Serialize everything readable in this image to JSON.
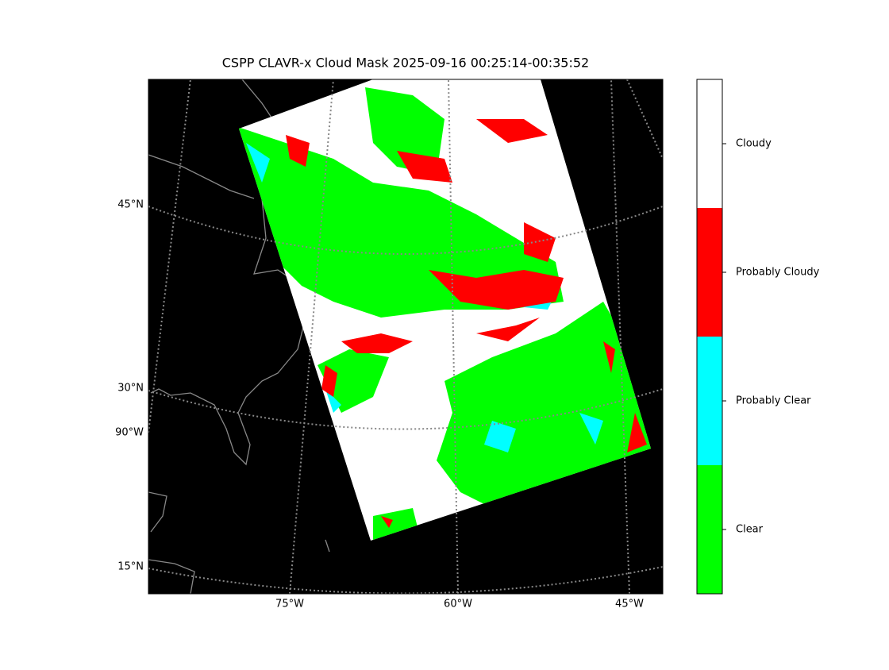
{
  "title": "CSPP CLAVR-x Cloud Mask 2025-09-16 00:25:14-00:35:52",
  "lat_labels": [
    "45°N",
    "30°N",
    "15°N"
  ],
  "lon_labels": [
    "90°W",
    "75°W",
    "60°W",
    "45°W"
  ],
  "colorbar": {
    "labels": [
      "Clear",
      "Probably Clear",
      "Probably Cloudy",
      "Cloudy"
    ],
    "colors": [
      "#00ff00",
      "#00ffff",
      "#ff0000",
      "#ffffff"
    ]
  }
}
